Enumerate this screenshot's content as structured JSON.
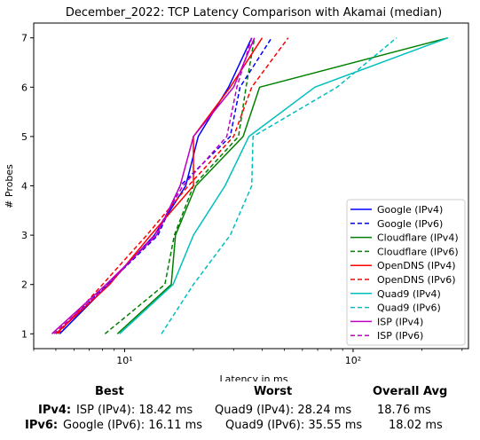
{
  "chart_data": {
    "type": "line",
    "title": "December_2022: TCP Latency Comparison with Akamai (median)",
    "xlabel": "Latency in ms",
    "ylabel": "# Probes",
    "xscale": "log",
    "xlim": [
      4,
      320
    ],
    "ylim": [
      0.7,
      7.3
    ],
    "yticks": [
      1,
      2,
      3,
      4,
      5,
      6,
      7
    ],
    "xticks": [
      10,
      100
    ],
    "xtick_labels": [
      "10¹",
      "10²"
    ],
    "grid": false,
    "legend_position": "lower-right",
    "series": [
      {
        "name": "Google (IPv4)",
        "color": "#0000ff",
        "dash": "solid",
        "x": [
          5.2,
          8.5,
          13.5,
          18.5,
          21.0,
          28.5,
          36.0
        ],
        "y": [
          1,
          2,
          3,
          4,
          5,
          6,
          7
        ]
      },
      {
        "name": "Google (IPv6)",
        "color": "#0000ff",
        "dash": "dashed",
        "x": [
          5.0,
          8.4,
          14.0,
          17.5,
          29.0,
          32.0,
          44.0
        ],
        "y": [
          1,
          2,
          3,
          4,
          5,
          6,
          7
        ]
      },
      {
        "name": "Cloudflare (IPv4)",
        "color": "#008000",
        "dash": "solid",
        "x": [
          9.3,
          16.0,
          16.7,
          20.5,
          33.0,
          39.0,
          260.0
        ],
        "y": [
          1,
          2,
          3,
          4,
          5,
          6,
          7
        ]
      },
      {
        "name": "Cloudflare (IPv6)",
        "color": "#008000",
        "dash": "dashed",
        "x": [
          8.2,
          15.0,
          16.5,
          20.0,
          31.5,
          34.0,
          37.0
        ],
        "y": [
          1,
          2,
          3,
          4,
          5,
          6,
          7
        ]
      },
      {
        "name": "OpenDNS (IPv4)",
        "color": "#ff0000",
        "dash": "solid",
        "x": [
          5.0,
          8.6,
          13.0,
          20.0,
          20.0,
          29.0,
          40.0
        ],
        "y": [
          1,
          2,
          3,
          4,
          5,
          6,
          7
        ]
      },
      {
        "name": "OpenDNS (IPv6)",
        "color": "#ff0000",
        "dash": "dashed",
        "x": [
          5.1,
          8.0,
          12.5,
          19.0,
          30.0,
          36.0,
          52.0
        ],
        "y": [
          1,
          2,
          3,
          4,
          5,
          6,
          7
        ]
      },
      {
        "name": "Quad9 (IPv4)",
        "color": "#00bfbf",
        "dash": "solid",
        "x": [
          9.5,
          16.3,
          20.0,
          27.5,
          35.0,
          68.0,
          260.0
        ],
        "y": [
          1,
          2,
          3,
          4,
          5,
          6,
          7
        ]
      },
      {
        "name": "Quad9 (IPv6)",
        "color": "#00bfbf",
        "dash": "dashed",
        "x": [
          14.5,
          20.0,
          29.0,
          36.0,
          36.5,
          85.0,
          155.0
        ],
        "y": [
          1,
          2,
          3,
          4,
          5,
          6,
          7
        ]
      },
      {
        "name": "ISP (IPv4)",
        "color": "#bf00bf",
        "dash": "solid",
        "x": [
          4.8,
          8.3,
          13.8,
          17.5,
          20.0,
          30.0,
          37.0
        ],
        "y": [
          1,
          2,
          3,
          4,
          5,
          6,
          7
        ]
      },
      {
        "name": "ISP (IPv6)",
        "color": "#bf00bf",
        "dash": "dashed",
        "x": [
          4.9,
          8.5,
          13.5,
          18.0,
          28.0,
          31.0,
          36.0
        ],
        "y": [
          1,
          2,
          3,
          4,
          5,
          6,
          7
        ]
      }
    ]
  },
  "summary": {
    "best_header": "Best",
    "worst_header": "Worst",
    "avg_header": "Overall Avg",
    "ipv4_label": "IPv4:",
    "ipv4_best": "ISP (IPv4): 18.42 ms",
    "ipv4_worst": "Quad9 (IPv4): 28.24 ms",
    "ipv4_avg": "18.76 ms",
    "ipv6_label": "IPv6:",
    "ipv6_best": "Google (IPv6): 16.11 ms",
    "ipv6_worst": "Quad9 (IPv6): 35.55 ms",
    "ipv6_avg": "18.02 ms"
  }
}
